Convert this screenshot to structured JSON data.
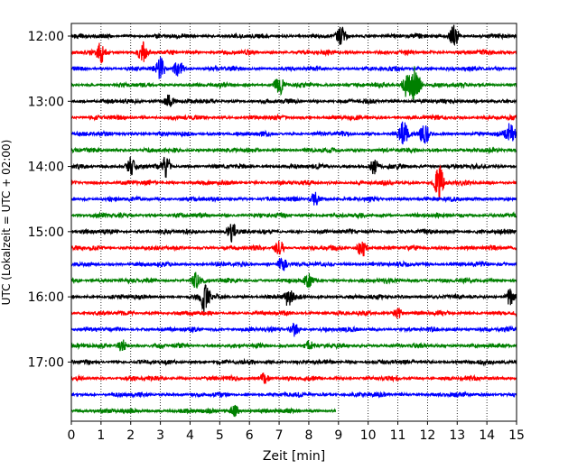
{
  "chart_data": {
    "type": "line",
    "title": "",
    "xlabel": "Zeit  [min]",
    "ylabel": "UTC (Lokalzeit = UTC + 02:00)",
    "xlim": [
      0,
      15
    ],
    "x_ticks": [
      "0",
      "1",
      "2",
      "3",
      "4",
      "5",
      "6",
      "7",
      "8",
      "9",
      "10",
      "11",
      "12",
      "13",
      "14",
      "15"
    ],
    "y_ticks": [
      "12:00",
      "13:00",
      "14:00",
      "15:00",
      "16:00",
      "17:00"
    ],
    "grid": "vertical-dotted",
    "trace_interval_min": 15,
    "trace_count": 24,
    "last_trace_end_min": 8.9,
    "colors": [
      "#000000",
      "#ff0000",
      "#0000ff",
      "#008000"
    ],
    "events": [
      {
        "trace": 0,
        "x": 9.1,
        "amp": 0.6
      },
      {
        "trace": 0,
        "x": 12.9,
        "amp": 0.9
      },
      {
        "trace": 1,
        "x": 1.0,
        "amp": 0.8
      },
      {
        "trace": 1,
        "x": 2.4,
        "amp": 0.7
      },
      {
        "trace": 2,
        "x": 3.0,
        "amp": 0.8
      },
      {
        "trace": 2,
        "x": 3.6,
        "amp": 0.7
      },
      {
        "trace": 3,
        "x": 7.0,
        "amp": 0.7
      },
      {
        "trace": 3,
        "x": 11.3,
        "amp": 1.0
      },
      {
        "trace": 3,
        "x": 11.6,
        "amp": 1.6
      },
      {
        "trace": 4,
        "x": 3.3,
        "amp": 0.6
      },
      {
        "trace": 6,
        "x": 11.2,
        "amp": 1.0
      },
      {
        "trace": 6,
        "x": 11.9,
        "amp": 0.8
      },
      {
        "trace": 6,
        "x": 14.8,
        "amp": 0.9
      },
      {
        "trace": 8,
        "x": 2.0,
        "amp": 0.7
      },
      {
        "trace": 8,
        "x": 3.2,
        "amp": 0.8
      },
      {
        "trace": 8,
        "x": 10.2,
        "amp": 0.5
      },
      {
        "trace": 9,
        "x": 12.4,
        "amp": 1.4
      },
      {
        "trace": 10,
        "x": 8.2,
        "amp": 0.5
      },
      {
        "trace": 12,
        "x": 5.4,
        "amp": 0.8
      },
      {
        "trace": 13,
        "x": 7.0,
        "amp": 0.6
      },
      {
        "trace": 13,
        "x": 9.8,
        "amp": 0.7
      },
      {
        "trace": 14,
        "x": 7.1,
        "amp": 0.6
      },
      {
        "trace": 15,
        "x": 4.2,
        "amp": 0.6
      },
      {
        "trace": 15,
        "x": 8.0,
        "amp": 0.4
      },
      {
        "trace": 16,
        "x": 4.5,
        "amp": 1.2
      },
      {
        "trace": 16,
        "x": 7.3,
        "amp": 0.7
      },
      {
        "trace": 16,
        "x": 14.8,
        "amp": 0.7
      },
      {
        "trace": 17,
        "x": 11.0,
        "amp": 0.4
      },
      {
        "trace": 18,
        "x": 7.5,
        "amp": 0.5
      },
      {
        "trace": 19,
        "x": 1.7,
        "amp": 0.5
      },
      {
        "trace": 19,
        "x": 8.0,
        "amp": 0.4
      },
      {
        "trace": 21,
        "x": 6.5,
        "amp": 0.4
      },
      {
        "trace": 23,
        "x": 5.5,
        "amp": 0.4
      }
    ]
  }
}
